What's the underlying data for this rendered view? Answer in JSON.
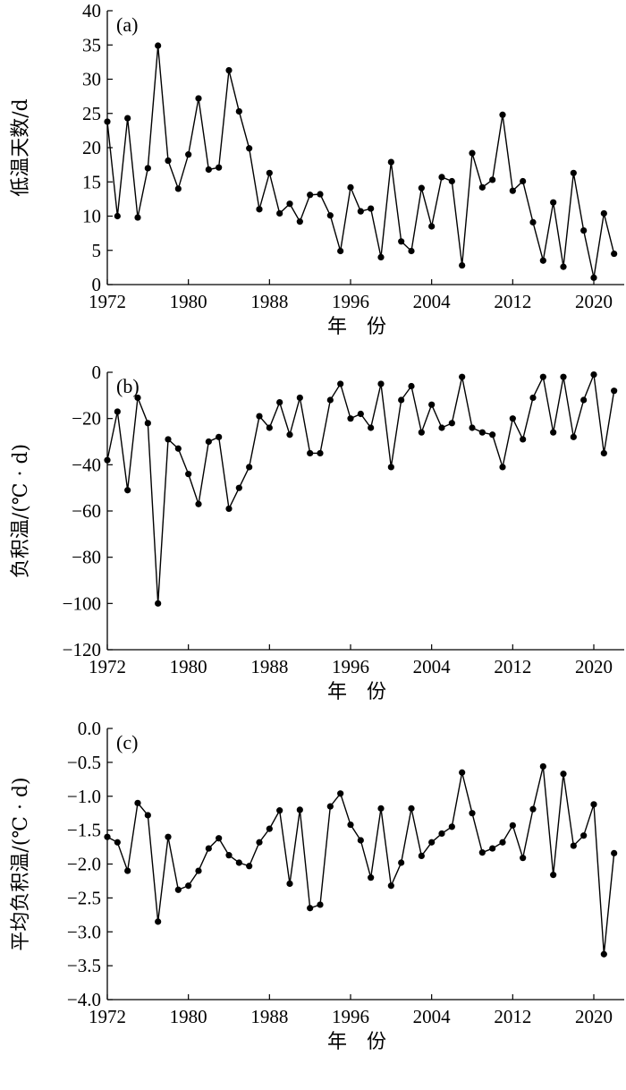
{
  "chart_data": [
    {
      "type": "line",
      "panel_label": "(a)",
      "xlabel": "年　份",
      "ylabel": "低温天数/d",
      "xlim": [
        1972,
        2023
      ],
      "ylim": [
        0,
        40
      ],
      "xticks": [
        1972,
        1980,
        1988,
        1996,
        2004,
        2012,
        2020
      ],
      "yticks": [
        0,
        5,
        10,
        15,
        20,
        25,
        30,
        35,
        40
      ],
      "ytick_labels": [
        "0",
        "5",
        "10",
        "15",
        "20",
        "25",
        "30",
        "35",
        "40"
      ],
      "x": [
        1972,
        1973,
        1974,
        1975,
        1976,
        1977,
        1978,
        1979,
        1980,
        1981,
        1982,
        1983,
        1984,
        1985,
        1986,
        1987,
        1988,
        1989,
        1990,
        1991,
        1992,
        1993,
        1994,
        1995,
        1996,
        1997,
        1998,
        1999,
        2000,
        2001,
        2002,
        2003,
        2004,
        2005,
        2006,
        2007,
        2008,
        2009,
        2010,
        2011,
        2012,
        2013,
        2014,
        2015,
        2016,
        2017,
        2018,
        2019,
        2020,
        2021,
        2022
      ],
      "y": [
        23.8,
        10.0,
        24.3,
        9.8,
        17.0,
        34.9,
        18.1,
        14.0,
        19.0,
        27.2,
        16.8,
        17.1,
        31.3,
        25.3,
        19.9,
        11.0,
        16.3,
        10.4,
        11.8,
        9.2,
        13.1,
        13.2,
        10.1,
        4.9,
        14.2,
        10.7,
        11.1,
        4.0,
        17.9,
        6.3,
        4.9,
        14.1,
        8.5,
        15.7,
        15.1,
        2.8,
        19.2,
        14.2,
        15.3,
        24.8,
        13.7,
        15.1,
        9.1,
        3.5,
        12.0,
        2.6,
        16.3,
        7.9,
        1.0,
        10.4,
        4.5
      ]
    },
    {
      "type": "line",
      "panel_label": "(b)",
      "xlabel": "年　份",
      "ylabel": "负积温/(℃ · d)",
      "xlim": [
        1972,
        2023
      ],
      "ylim": [
        -120,
        0
      ],
      "xticks": [
        1972,
        1980,
        1988,
        1996,
        2004,
        2012,
        2020
      ],
      "yticks": [
        -120,
        -100,
        -80,
        -60,
        -40,
        -20,
        0
      ],
      "ytick_labels": [
        "−120",
        "−100",
        "−80",
        "−60",
        "−40",
        "−20",
        "0"
      ],
      "x": [
        1972,
        1973,
        1974,
        1975,
        1976,
        1977,
        1978,
        1979,
        1980,
        1981,
        1982,
        1983,
        1984,
        1985,
        1986,
        1987,
        1988,
        1989,
        1990,
        1991,
        1992,
        1993,
        1994,
        1995,
        1996,
        1997,
        1998,
        1999,
        2000,
        2001,
        2002,
        2003,
        2004,
        2005,
        2006,
        2007,
        2008,
        2009,
        2010,
        2011,
        2012,
        2013,
        2014,
        2015,
        2016,
        2017,
        2018,
        2019,
        2020,
        2021,
        2022
      ],
      "y": [
        -38,
        -17,
        -51,
        -11,
        -22,
        -100,
        -29,
        -33,
        -44,
        -57,
        -30,
        -28,
        -59,
        -50,
        -41,
        -19,
        -24,
        -13,
        -27,
        -11,
        -35,
        -35,
        -12,
        -5,
        -20,
        -18,
        -24,
        -5,
        -41,
        -12,
        -6,
        -26,
        -14,
        -24,
        -22,
        -2,
        -24,
        -26,
        -27,
        -41,
        -20,
        -29,
        -11,
        -2,
        -26,
        -2,
        -28,
        -12,
        -1,
        -35,
        -8
      ]
    },
    {
      "type": "line",
      "panel_label": "(c)",
      "xlabel": "年　份",
      "ylabel": "平均负积温/(℃ · d)",
      "xlim": [
        1972,
        2023
      ],
      "ylim": [
        -4.0,
        0.0
      ],
      "xticks": [
        1972,
        1980,
        1988,
        1996,
        2004,
        2012,
        2020
      ],
      "yticks": [
        -4.0,
        -3.5,
        -3.0,
        -2.5,
        -2.0,
        -1.5,
        -1.0,
        -0.5,
        0.0
      ],
      "ytick_labels": [
        "−4.0",
        "−3.5",
        "−3.0",
        "−2.5",
        "−2.0",
        "−1.5",
        "−1.0",
        "−0.5",
        "0.0"
      ],
      "x": [
        1972,
        1973,
        1974,
        1975,
        1976,
        1977,
        1978,
        1979,
        1980,
        1981,
        1982,
        1983,
        1984,
        1985,
        1986,
        1987,
        1988,
        1989,
        1990,
        1991,
        1992,
        1993,
        1994,
        1995,
        1996,
        1997,
        1998,
        1999,
        2000,
        2001,
        2002,
        2003,
        2004,
        2005,
        2006,
        2007,
        2008,
        2009,
        2010,
        2011,
        2012,
        2013,
        2014,
        2015,
        2016,
        2017,
        2018,
        2019,
        2020,
        2021,
        2022
      ],
      "y": [
        -1.6,
        -1.68,
        -2.1,
        -1.1,
        -1.28,
        -2.85,
        -1.6,
        -2.38,
        -2.32,
        -2.1,
        -1.77,
        -1.62,
        -1.87,
        -1.98,
        -2.03,
        -1.68,
        -1.48,
        -1.21,
        -2.29,
        -1.2,
        -2.65,
        -2.6,
        -1.15,
        -0.96,
        -1.42,
        -1.65,
        -2.2,
        -1.18,
        -2.32,
        -1.98,
        -1.18,
        -1.88,
        -1.68,
        -1.55,
        -1.45,
        -0.65,
        -1.25,
        -1.83,
        -1.77,
        -1.68,
        -1.43,
        -1.91,
        -1.19,
        -0.56,
        -2.16,
        -0.67,
        -1.73,
        -1.58,
        -1.12,
        -3.33,
        -1.84
      ]
    }
  ]
}
